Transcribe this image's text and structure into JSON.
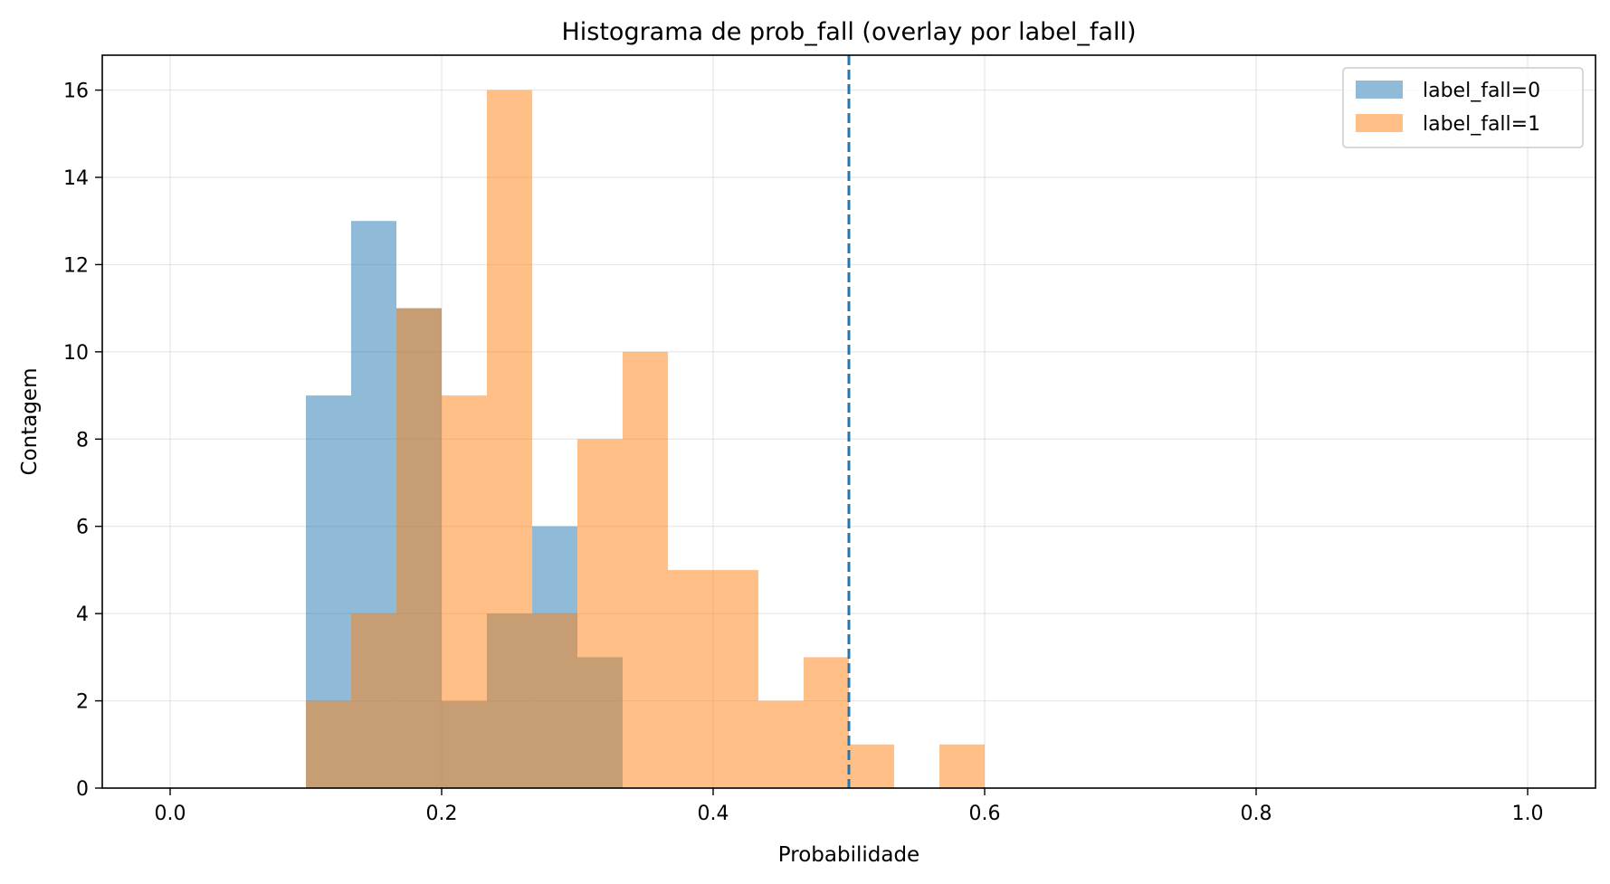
{
  "chart_data": {
    "type": "bar",
    "subtype": "histogram-overlay",
    "title": "Histograma de prob_fall (overlay por label_fall)",
    "xlabel": "Probabilidade",
    "ylabel": "Contagem",
    "xlim": [
      -0.05,
      1.05
    ],
    "ylim": [
      0,
      16.8
    ],
    "xticks": [
      0.0,
      0.2,
      0.4,
      0.6,
      0.8,
      1.0
    ],
    "xtick_labels": [
      "0.0",
      "0.2",
      "0.4",
      "0.6",
      "0.8",
      "1.0"
    ],
    "yticks": [
      0,
      2,
      4,
      6,
      8,
      10,
      12,
      14,
      16
    ],
    "ytick_labels": [
      "0",
      "2",
      "4",
      "6",
      "8",
      "10",
      "12",
      "14",
      "16"
    ],
    "grid": true,
    "legend_position": "top-right",
    "threshold": {
      "x": 0.5,
      "style": "dashed",
      "color": "#1f77b4"
    },
    "bin_edges": [
      0.0,
      0.0333,
      0.0667,
      0.1,
      0.1333,
      0.1667,
      0.2,
      0.2333,
      0.2667,
      0.3,
      0.3333,
      0.3667,
      0.4,
      0.4333,
      0.4667,
      0.5,
      0.5333,
      0.5667,
      0.6,
      0.6333,
      0.6667,
      0.7,
      0.7333,
      0.7667,
      0.8,
      0.8333,
      0.8667,
      0.9,
      0.9333,
      0.9667,
      1.0
    ],
    "series": [
      {
        "name": "label_fall=0",
        "color": "#1f77b4",
        "alpha": 0.5,
        "counts": [
          0,
          0,
          0,
          9,
          13,
          11,
          2,
          4,
          6,
          3,
          0,
          0,
          0,
          0,
          0,
          0,
          0,
          0,
          0,
          0,
          0,
          0,
          0,
          0,
          0,
          0,
          0,
          0,
          0,
          0
        ]
      },
      {
        "name": "label_fall=1",
        "color": "#ff7f0e",
        "alpha": 0.5,
        "counts": [
          0,
          0,
          0,
          2,
          4,
          11,
          9,
          16,
          4,
          8,
          10,
          5,
          5,
          2,
          3,
          1,
          0,
          1,
          0,
          0,
          0,
          0,
          0,
          0,
          0,
          0,
          0,
          0,
          0,
          0
        ]
      }
    ]
  }
}
